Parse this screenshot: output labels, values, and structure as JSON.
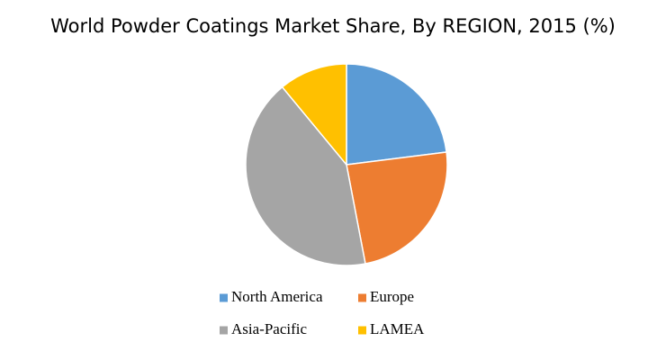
{
  "chart_data": {
    "type": "pie",
    "title": "World Powder Coatings Market Share, By REGION, 2015 (%)",
    "categories": [
      "North America",
      "Europe",
      "Asia-Pacific",
      "LAMEA"
    ],
    "values": [
      23,
      24,
      42,
      11
    ],
    "colors": [
      "#5b9bd5",
      "#ed7d31",
      "#a5a5a5",
      "#ffc000"
    ]
  }
}
